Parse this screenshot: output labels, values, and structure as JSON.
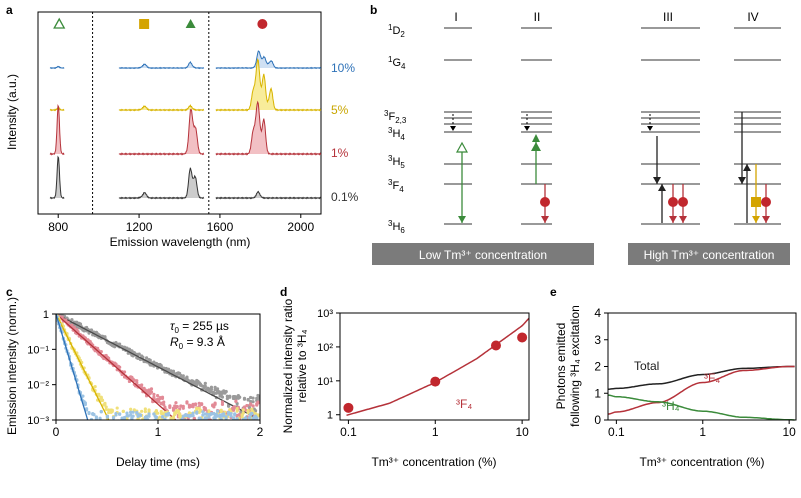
{
  "panels": {
    "a": {
      "label": "a",
      "ylabel": "Intensity (a.u.)",
      "xlabel": "Emission wavelength (nm)",
      "xticks": [
        "800",
        "1200",
        "1600",
        "2000"
      ],
      "xtick_values": [
        800,
        1200,
        1600,
        2000
      ],
      "xlim": [
        700,
        2100
      ],
      "dashed_lines_nm": [
        970,
        1545
      ],
      "markers": [
        {
          "name": "open-triangle-marker",
          "nm": 805,
          "shape": "open-triangle",
          "color": "#3b8b3b"
        },
        {
          "name": "square-marker",
          "nm": 1225,
          "shape": "square",
          "color": "#d4a400"
        },
        {
          "name": "triangle-marker",
          "nm": 1455,
          "shape": "triangle",
          "color": "#3b8b3b"
        },
        {
          "name": "circle-marker",
          "nm": 1810,
          "shape": "circle",
          "color": "#c1272d"
        }
      ],
      "traces": [
        {
          "label": "10%",
          "color": "#2e72b8",
          "fill": "#cfe0f3"
        },
        {
          "label": "5%",
          "color": "#d8b400",
          "fill": "#f8ec9a"
        },
        {
          "label": "1%",
          "color": "#b5323a",
          "fill": "#f2c0c4"
        },
        {
          "label": "0.1%",
          "color": "#333333",
          "fill": "#cccccc"
        }
      ]
    },
    "b": {
      "label": "b",
      "levels": [
        "1D2",
        "1G4",
        "3F2,3",
        "3H4",
        "3H5",
        "3F4",
        "3H6"
      ],
      "columns": [
        "I",
        "II",
        "III",
        "IV"
      ],
      "banner_low": "Low Tm³⁺ concentration",
      "banner_high": "High Tm³⁺ concentration"
    },
    "c": {
      "label": "c",
      "ylabel": "Emission intensity (norm.)",
      "xlabel": "Delay time (ms)",
      "xticks": [
        "0",
        "1",
        "2"
      ],
      "yticks": [
        "10⁻³",
        "10⁻²",
        "10⁻¹",
        "1"
      ],
      "annotation_tau_symbol": "τ",
      "annotation_tau_sub": "0",
      "annotation_tau_value": " = 255 µs",
      "annotation_r_symbol": "R",
      "annotation_r_sub": "0",
      "annotation_r_value": " = 9.3 Å"
    },
    "d": {
      "label": "d",
      "ylabel_line1": "Normalized intensity ratio",
      "ylabel_line2": "relative to ³H₄",
      "xlabel": "Tm³⁺ concentration (%)",
      "curve_label": "³F₄",
      "xticks": [
        "0.1",
        "1",
        "10"
      ],
      "yticks": [
        "1",
        "10¹",
        "10²",
        "10³"
      ]
    },
    "e": {
      "label": "e",
      "ylabel_line1": "Photons emitted",
      "ylabel_line2": "following ³H₄ excitation",
      "xlabel": "Tm³⁺ concentration (%)",
      "xticks": [
        "0.1",
        "1",
        "10"
      ],
      "yticks": [
        "0",
        "1",
        "2",
        "3",
        "4"
      ],
      "label_total": "Total",
      "label_3f4": "³F₄",
      "label_3h4": "³H₄"
    }
  },
  "chart_data": [
    {
      "panel": "a",
      "type": "line",
      "title": "",
      "xlabel": "Emission wavelength (nm)",
      "ylabel": "Intensity (a.u.)",
      "xlim": [
        700,
        2100
      ],
      "series": [
        {
          "name": "10%",
          "peaks_nm": [
            800,
            1225,
            1455,
            1790,
            1815,
            1850
          ],
          "peaks_rel": [
            0.05,
            0.15,
            0.2,
            0.55,
            0.5,
            0.35
          ]
        },
        {
          "name": "5%",
          "peaks_nm": [
            800,
            1225,
            1455,
            1770,
            1790,
            1815,
            1850
          ],
          "peaks_rel": [
            0.05,
            0.1,
            0.1,
            0.75,
            1.0,
            0.85,
            0.55
          ]
        },
        {
          "name": "1%",
          "peaks_nm": [
            800,
            1455,
            1475,
            1770,
            1790,
            1815
          ],
          "peaks_rel": [
            1.0,
            0.8,
            0.75,
            0.8,
            0.9,
            0.75
          ]
        },
        {
          "name": "0.1%",
          "peaks_nm": [
            800,
            1225,
            1455,
            1475,
            1790
          ],
          "peaks_rel": [
            1.0,
            0.15,
            0.7,
            0.55,
            0.15
          ]
        }
      ]
    },
    {
      "panel": "c",
      "type": "scatter",
      "xlabel": "Delay time (ms)",
      "ylabel": "Emission intensity (norm.)",
      "xlim": [
        0,
        2
      ],
      "ylim": [
        0.001,
        1
      ],
      "yscale": "log",
      "series": [
        {
          "name": "0.1%",
          "color": "#4a4a4a",
          "fill": "#9a9a9a",
          "decay_const_ms": 0.29,
          "floor": 0.003
        },
        {
          "name": "1%",
          "color": "#b5323a",
          "fill": "#e28a96",
          "decay_const_ms": 0.17,
          "floor": 0.002
        },
        {
          "name": "5%",
          "color": "#d8b400",
          "fill": "#f0e07a",
          "decay_const_ms": 0.075,
          "floor": 0.0013
        },
        {
          "name": "10%",
          "color": "#2e72b8",
          "fill": "#9cc3e3",
          "decay_const_ms": 0.045,
          "floor": 0.001
        }
      ]
    },
    {
      "panel": "d",
      "type": "scatter",
      "xlabel": "Tm³⁺ concentration (%)",
      "ylabel": "Normalized intensity ratio relative to ³H₄",
      "xlim": [
        0.08,
        12
      ],
      "ylim": [
        0.7,
        1000
      ],
      "xscale": "log",
      "yscale": "log",
      "points": {
        "x": [
          0.1,
          1,
          5,
          10
        ],
        "y": [
          1.6,
          9.5,
          110,
          190
        ]
      },
      "fit_curve": {
        "x": [
          0.1,
          0.3,
          1,
          3,
          10,
          12
        ],
        "y": [
          1.0,
          2.2,
          9.0,
          45,
          420,
          700
        ]
      }
    },
    {
      "panel": "e",
      "type": "line",
      "xlabel": "Tm³⁺ concentration (%)",
      "ylabel": "Photons emitted following ³H₄ excitation",
      "xlim": [
        0.08,
        12
      ],
      "ylim": [
        0,
        4
      ],
      "xscale": "log",
      "series": [
        {
          "name": "Total",
          "color": "#222222",
          "x": [
            0.08,
            0.1,
            0.3,
            1,
            3,
            10,
            12
          ],
          "y": [
            1.15,
            1.18,
            1.35,
            1.7,
            1.93,
            2.0,
            2.0
          ]
        },
        {
          "name": "³F₄",
          "color": "#b5323a",
          "x": [
            0.08,
            0.1,
            0.3,
            1,
            3,
            10,
            12
          ],
          "y": [
            0.22,
            0.3,
            0.65,
            1.4,
            1.85,
            2.0,
            2.0
          ]
        },
        {
          "name": "³H₄",
          "color": "#3b8b3b",
          "x": [
            0.08,
            0.1,
            0.3,
            1,
            3,
            10,
            12
          ],
          "y": [
            0.93,
            0.87,
            0.68,
            0.33,
            0.1,
            0.01,
            0.0
          ]
        }
      ]
    }
  ]
}
